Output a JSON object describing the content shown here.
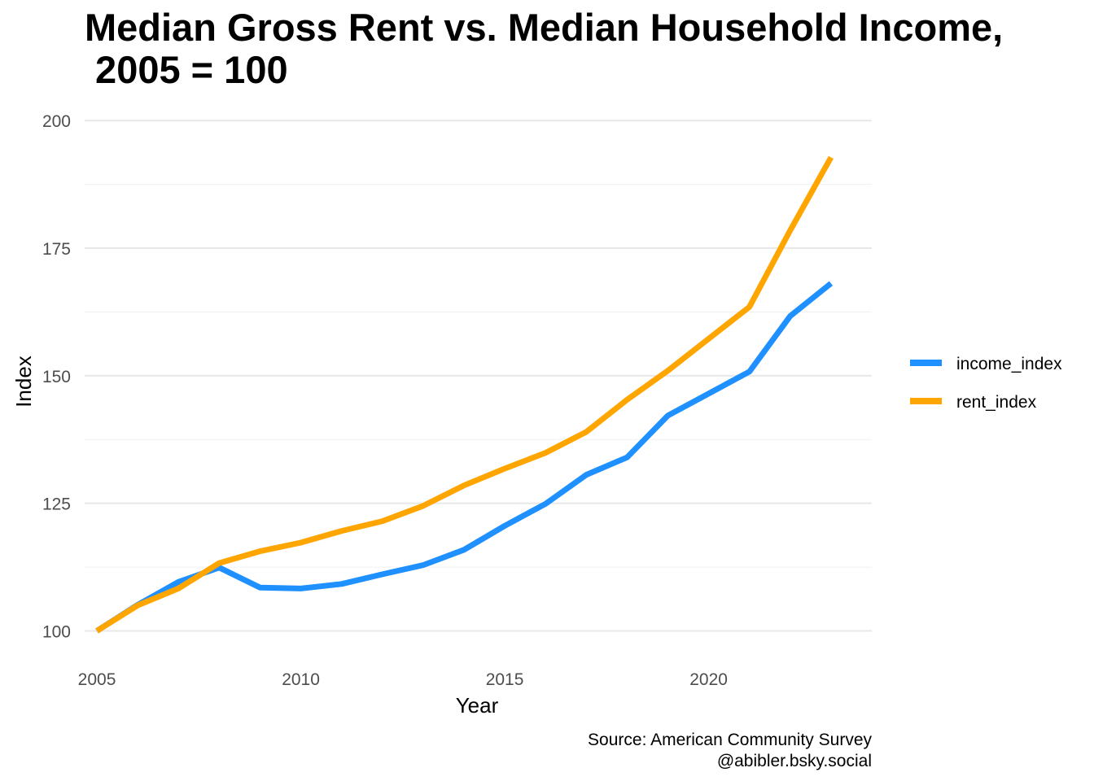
{
  "chart_data": {
    "type": "line",
    "title": "Median Gross Rent vs. Median Household Income,\n 2005 = 100",
    "xlabel": "Year",
    "ylabel": "Index",
    "xlim": [
      2004.7,
      2024.0
    ],
    "ylim": [
      94.5,
      204.5
    ],
    "x_ticks": [
      2005,
      2010,
      2015,
      2020
    ],
    "y_ticks": [
      100,
      125,
      150,
      175,
      200
    ],
    "grid": true,
    "legend_position": "right",
    "x": [
      2005,
      2006,
      2007,
      2008,
      2009,
      2010,
      2011,
      2012,
      2013,
      2014,
      2015,
      2016,
      2017,
      2018,
      2019,
      2021,
      2022,
      2023
    ],
    "series": [
      {
        "name": "income_index",
        "color": "#1E90FF",
        "values": [
          100,
          105.1,
          109.6,
          112.4,
          108.5,
          108.3,
          109.2,
          111.1,
          112.9,
          115.9,
          120.6,
          124.9,
          130.6,
          134.0,
          142.2,
          150.8,
          161.7,
          168.1
        ]
      },
      {
        "name": "rent_index",
        "color": "#FFA500",
        "values": [
          100,
          105.0,
          108.3,
          113.3,
          115.6,
          117.3,
          119.6,
          121.5,
          124.5,
          128.5,
          131.8,
          134.9,
          139.0,
          145.3,
          151.0,
          163.5,
          178.5,
          192.8
        ]
      }
    ],
    "caption_lines": [
      "Source: American Community Survey",
      "@abibler.bsky.social"
    ]
  }
}
